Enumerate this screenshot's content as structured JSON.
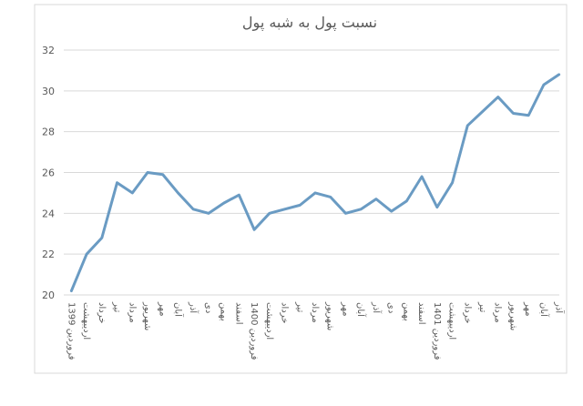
{
  "chart_data": {
    "type": "line",
    "title": "نسبت پول به شبه پول",
    "categories": [
      "فروردین 1399",
      "اردیبهشت",
      "خرداد",
      "تیر",
      "مرداد",
      "شهریور",
      "مهر",
      "آبان",
      "آذر",
      "دی",
      "بهمن",
      "اسفند",
      "فروردین 1400",
      "اردیبهشت",
      "خرداد",
      "تیر",
      "مرداد",
      "شهریور",
      "مهر",
      "آبان",
      "آذر",
      "دی",
      "بهمن",
      "اسفند",
      "فروردین 1401",
      "اردیبهشت",
      "خرداد",
      "تیر",
      "مرداد",
      "شهریور",
      "مهر",
      "آبان",
      "آذر"
    ],
    "series": [
      {
        "name": "نسبت پول به شبه پول",
        "color": "#6a9bc3",
        "values": [
          20.2,
          22.0,
          22.8,
          25.5,
          25.0,
          26.0,
          25.9,
          25.0,
          24.2,
          24.0,
          24.5,
          24.9,
          23.2,
          24.0,
          24.2,
          24.4,
          25.0,
          24.8,
          24.0,
          24.2,
          24.7,
          24.1,
          24.6,
          25.8,
          24.3,
          25.5,
          28.3,
          29.0,
          29.7,
          28.9,
          28.8,
          30.3,
          30.8
        ]
      }
    ],
    "ylim": [
      20,
      32
    ],
    "yticks": [
      20,
      22,
      24,
      26,
      28,
      30,
      32
    ],
    "grid": true
  }
}
